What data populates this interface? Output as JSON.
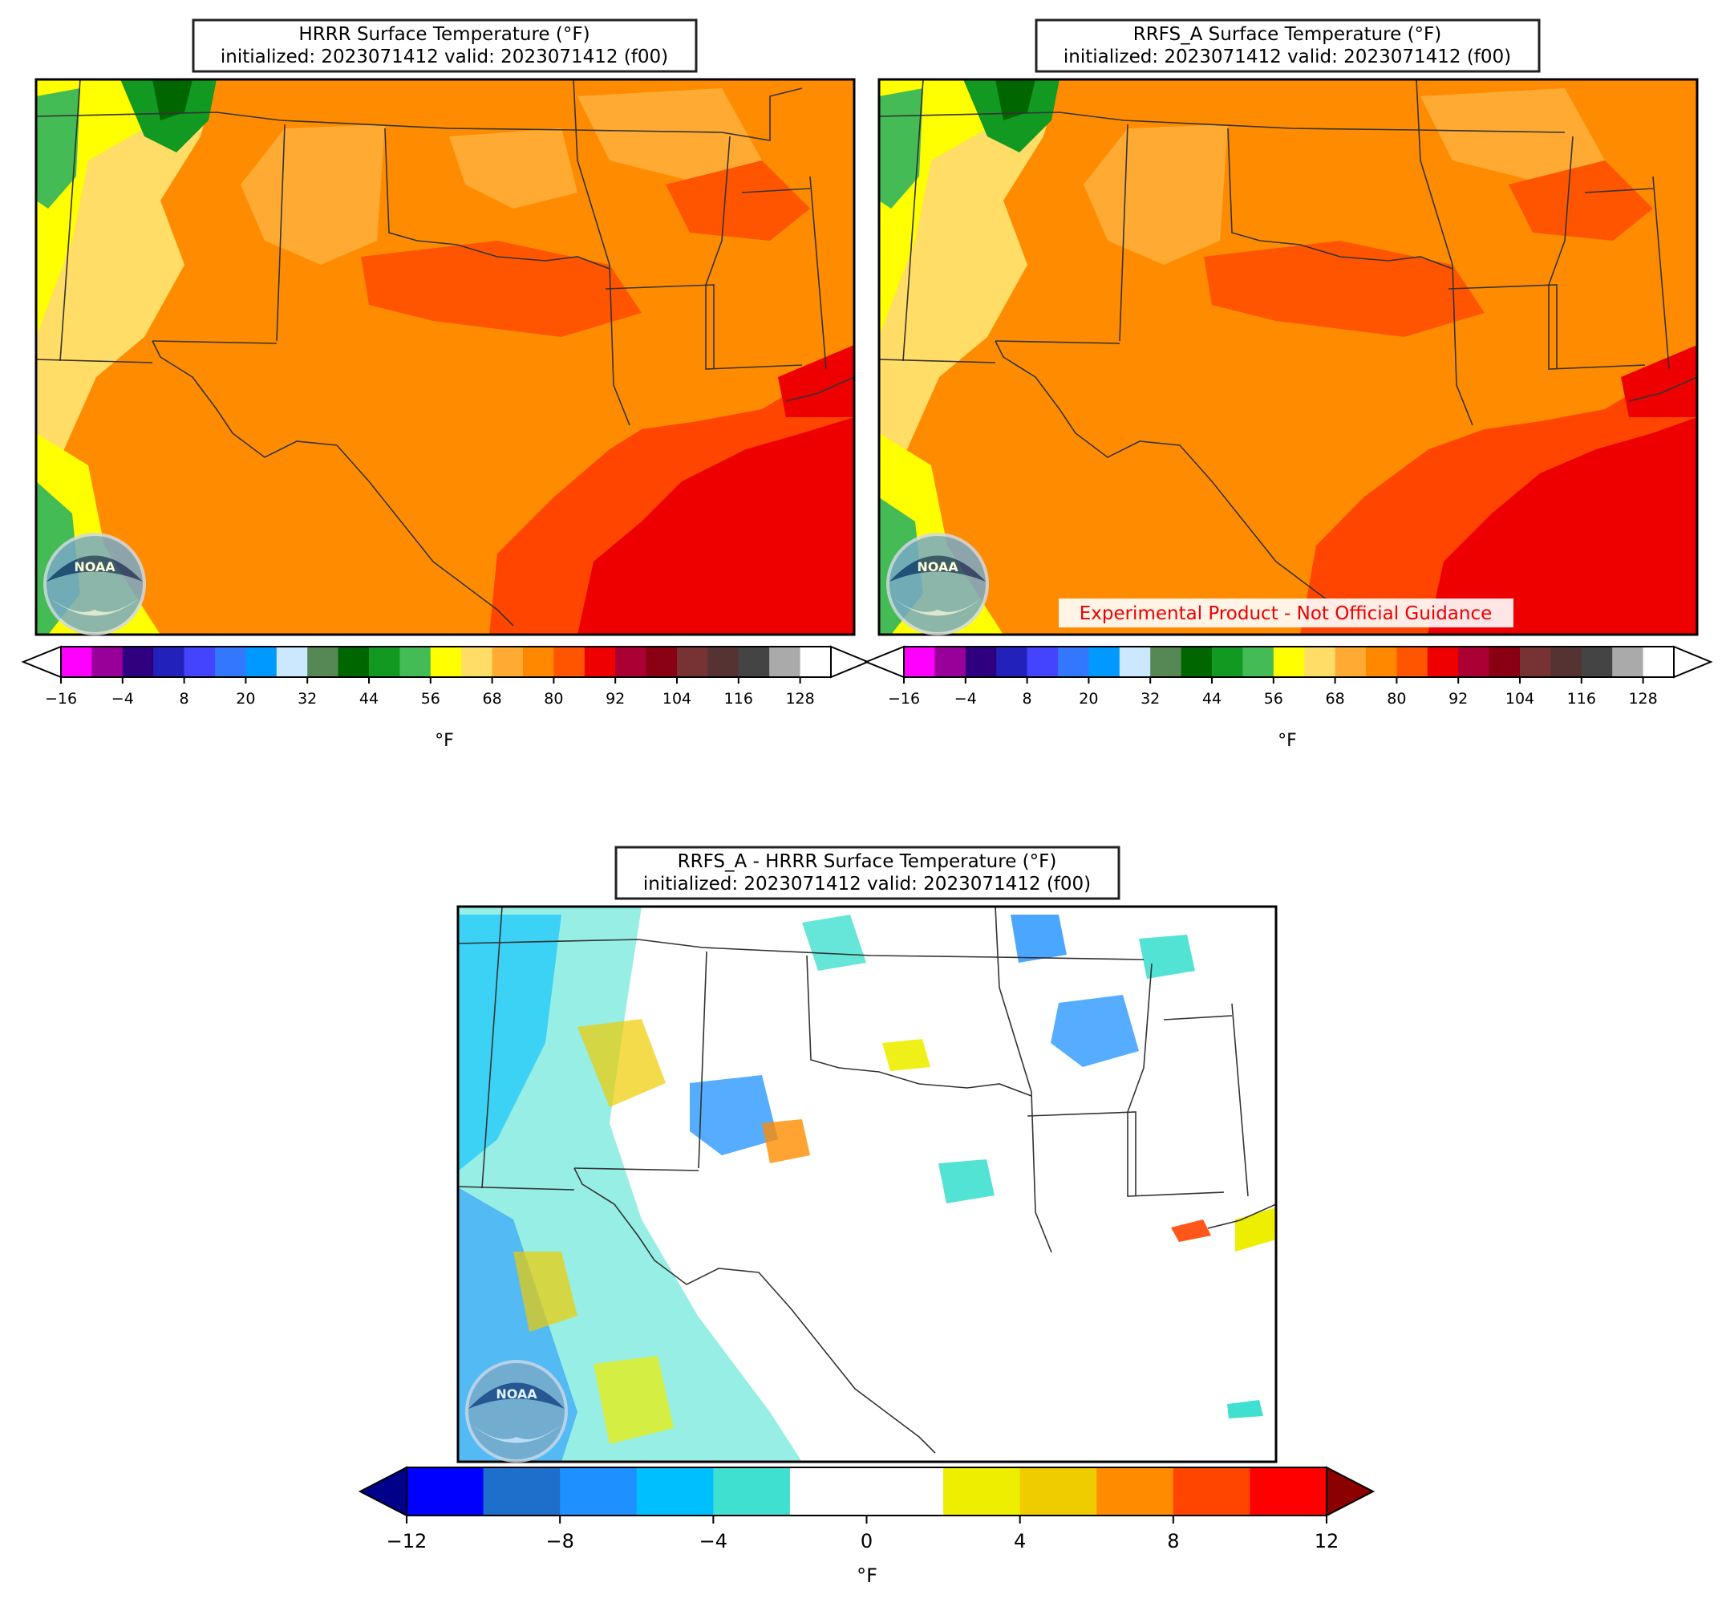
{
  "panels": [
    {
      "id": "hrrr",
      "title_line1": "HRRR Surface Temperature (°F)",
      "title_line2": "initialized: 2023071412 valid: 2023071412 (f00)",
      "colorbar_ticks": [
        "−16",
        "−4",
        "8",
        "20",
        "32",
        "44",
        "56",
        "68",
        "80",
        "92",
        "104",
        "116",
        "128"
      ],
      "colorbar_unit": "°F",
      "logo_text": "NOAA",
      "banner": ""
    },
    {
      "id": "rrfs",
      "title_line1": "RRFS_A Surface Temperature (°F)",
      "title_line2": "initialized: 2023071412 valid: 2023071412 (f00)",
      "colorbar_ticks": [
        "−16",
        "−4",
        "8",
        "20",
        "32",
        "44",
        "56",
        "68",
        "80",
        "92",
        "104",
        "116",
        "128"
      ],
      "colorbar_unit": "°F",
      "logo_text": "NOAA",
      "banner": "Experimental Product - Not Official Guidance"
    },
    {
      "id": "diff",
      "title_line1": "RRFS_A - HRRR Surface Temperature (°F)",
      "title_line2": "initialized: 2023071412 valid: 2023071412 (f00)",
      "colorbar_ticks": [
        "−12",
        "−8",
        "−4",
        "0",
        "4",
        "8",
        "12"
      ],
      "colorbar_unit": "°F",
      "logo_text": "NOAA",
      "banner": ""
    }
  ],
  "colors": {
    "temp_scale": [
      "#ff00ff",
      "#990099",
      "#2e0080",
      "#2222bb",
      "#4444ff",
      "#3377ff",
      "#0099ff",
      "#cce8ff",
      "#558855",
      "#006600",
      "#119922",
      "#44bb55",
      "#ffff00",
      "#ffdd66",
      "#ffaa33",
      "#ff8800",
      "#ff5500",
      "#ee0000",
      "#aa0033",
      "#880011",
      "#773333",
      "#553333",
      "#444444",
      "#aaaaaa",
      "#ffffff"
    ],
    "temp_under": "#ffffff",
    "temp_over": "#ffffff",
    "diff_scale": [
      "#0000ff",
      "#1e6ecc",
      "#1e90ff",
      "#00bfff",
      "#40e0d0",
      "#ffffff",
      "#ffffff",
      "#eeee00",
      "#eecc00",
      "#ff8c00",
      "#ff4500",
      "#ff0000"
    ],
    "diff_under": "#00008b",
    "diff_over": "#8b0000",
    "gulf": "#ee0000",
    "land_base": "#ff8c00"
  }
}
